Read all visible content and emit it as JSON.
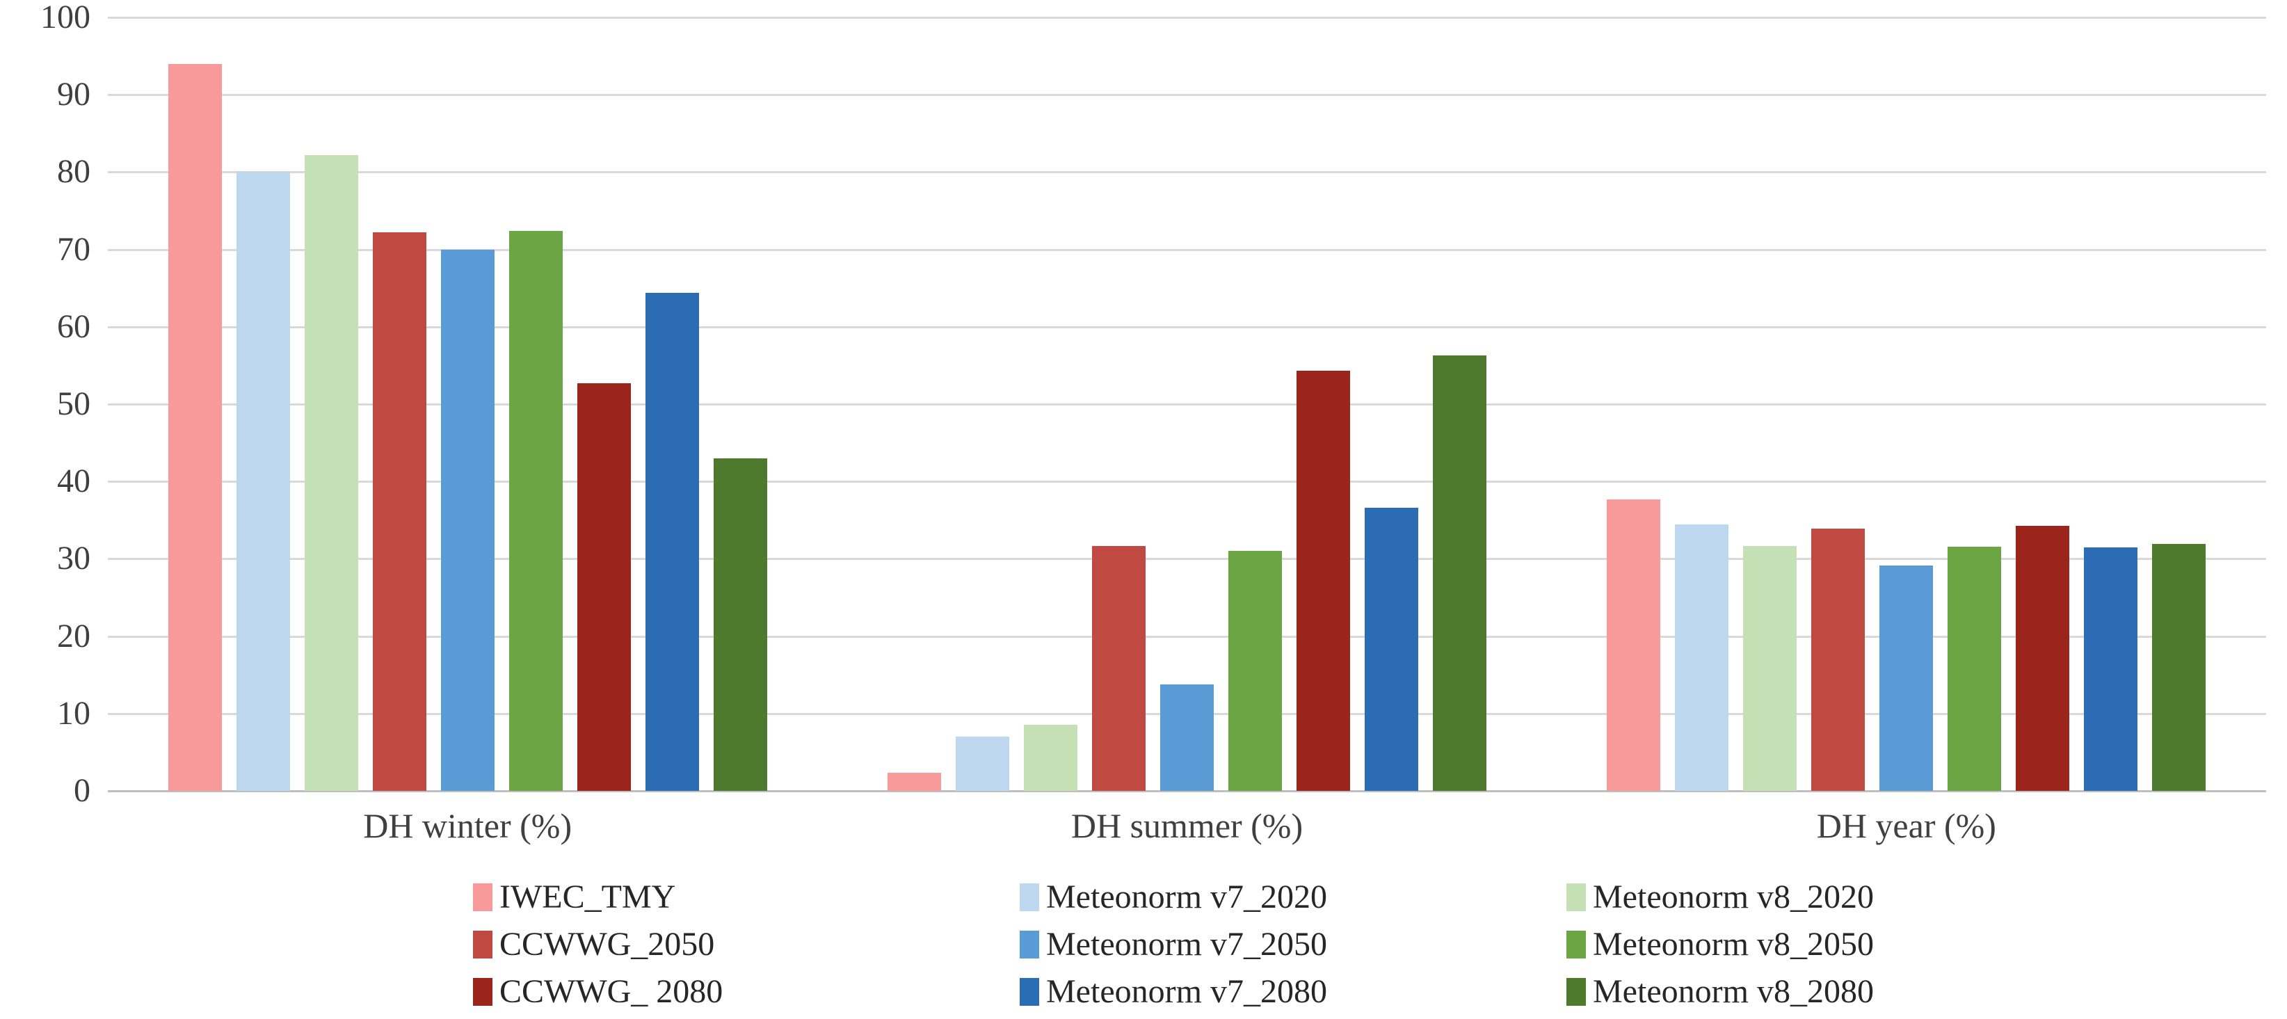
{
  "chart_data": {
    "type": "bar",
    "title": "",
    "categories": [
      "DH winter (%)",
      "DH summer (%)",
      "DH year (%)"
    ],
    "series": [
      {
        "name": "IWEC_TMY",
        "color": "#f99a9a",
        "values": [
          94.0,
          2.3,
          37.7
        ]
      },
      {
        "name": "Meteonorm v7_2020",
        "color": "#bdd7ee",
        "values": [
          80.0,
          7.0,
          34.4
        ]
      },
      {
        "name": "Meteonorm v8_2020",
        "color": "#c5e0b4",
        "values": [
          82.2,
          8.5,
          31.7
        ]
      },
      {
        "name": "CCWWG_2050",
        "color": "#c04a42",
        "values": [
          72.2,
          31.7,
          33.9
        ]
      },
      {
        "name": "Meteonorm v7_2050",
        "color": "#5b9bd5",
        "values": [
          70.0,
          13.8,
          29.1
        ]
      },
      {
        "name": "Meteonorm v8_2050",
        "color": "#6ba544",
        "values": [
          72.4,
          31.0,
          31.6
        ]
      },
      {
        "name": "CCWWG_ 2080",
        "color": "#9c251b",
        "values": [
          52.7,
          54.3,
          34.3
        ]
      },
      {
        "name": "Meteonorm v7_2080",
        "color": "#2c6cb5",
        "values": [
          64.4,
          36.6,
          31.5
        ]
      },
      {
        "name": "Meteonorm v8_2080",
        "color": "#4e7a2e",
        "values": [
          43.0,
          56.3,
          31.9
        ]
      }
    ],
    "ylim": [
      0,
      100
    ],
    "yticks": [
      0,
      10,
      20,
      30,
      40,
      50,
      60,
      70,
      80,
      90,
      100
    ],
    "grid": true,
    "legend_position": "bottom",
    "legend_grid": [
      [
        "IWEC_TMY",
        "Meteonorm v7_2020",
        "Meteonorm v8_2020"
      ],
      [
        "CCWWG_2050",
        "Meteonorm v7_2050",
        "Meteonorm v8_2050"
      ],
      [
        "CCWWG_ 2080",
        "Meteonorm v7_2080",
        "Meteonorm v8_2080"
      ]
    ],
    "colors": {
      "grid": "#d9d9d9",
      "axis": "#bfbfbf",
      "tick_text": "#3f3f3f",
      "label_text": "#404040",
      "legend_text": "#262626",
      "background": "#ffffff"
    }
  }
}
